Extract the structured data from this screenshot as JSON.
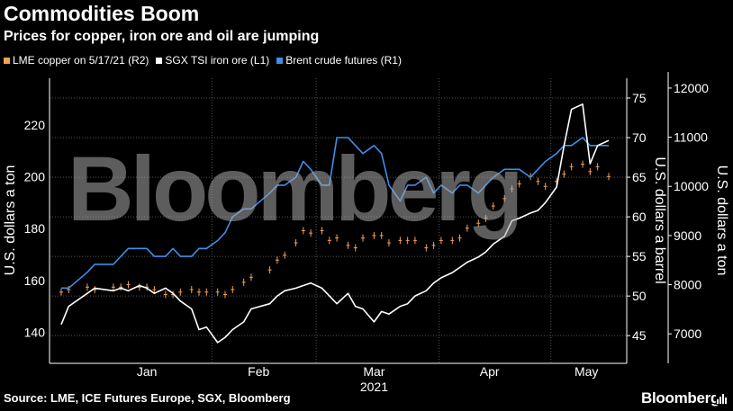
{
  "title": "Commodities Boom",
  "subtitle": "Prices for copper, iron ore and oil are jumping",
  "source": "Source: LME, ICE Futures Europe, SGX, Bloomberg",
  "brand": "Bloomberg",
  "watermark": "Bloomberg",
  "colors": {
    "copper": "#f5a050",
    "iron": "#ffffff",
    "brent": "#3d8fe8",
    "grid": "#555555",
    "background": "#000000"
  },
  "chart_data": {
    "type": "line",
    "x_ticks": [
      "Jan",
      "Feb",
      "Mar",
      "Apr",
      "May"
    ],
    "x_year": "2021",
    "legend": [
      {
        "label": "LME copper on 5/17/21 (R2)",
        "color": "#f5a050"
      },
      {
        "label": "SGX TSI iron ore (L1)",
        "color": "#ffffff"
      },
      {
        "label": "Brent crude futures (R1)",
        "color": "#3d8fe8"
      }
    ],
    "axes": {
      "left": {
        "label": "U.S. dollars a ton",
        "ticks": [
          140,
          160,
          180,
          200,
          220
        ],
        "range": [
          128,
          238
        ]
      },
      "right1": {
        "label": "U.S. dollars a barrel",
        "ticks": [
          45,
          50,
          55,
          60,
          65,
          70,
          75
        ],
        "range": [
          41.5,
          77.5
        ]
      },
      "right2": {
        "label": "U.S. dollars a ton",
        "ticks": [
          7000,
          8000,
          9000,
          10000,
          11000,
          12000
        ],
        "range": [
          6400,
          12200
        ]
      }
    },
    "x_range": [
      "2020-12-21",
      "2021-05-17"
    ],
    "series": [
      {
        "name": "SGX TSI iron ore (L1)",
        "axis": "left",
        "x": [
          "2020-12-21",
          "2020-12-23",
          "2020-12-28",
          "2020-12-30",
          "2021-01-04",
          "2021-01-06",
          "2021-01-08",
          "2021-01-11",
          "2021-01-13",
          "2021-01-15",
          "2021-01-18",
          "2021-01-20",
          "2021-01-22",
          "2021-01-25",
          "2021-01-27",
          "2021-01-29",
          "2021-02-01",
          "2021-02-03",
          "2021-02-05",
          "2021-02-08",
          "2021-02-10",
          "2021-02-15",
          "2021-02-17",
          "2021-02-19",
          "2021-02-22",
          "2021-02-24",
          "2021-02-26",
          "2021-03-01",
          "2021-03-03",
          "2021-03-05",
          "2021-03-08",
          "2021-03-10",
          "2021-03-12",
          "2021-03-15",
          "2021-03-17",
          "2021-03-19",
          "2021-03-22",
          "2021-03-24",
          "2021-03-26",
          "2021-03-29",
          "2021-03-31",
          "2021-04-02",
          "2021-04-05",
          "2021-04-07",
          "2021-04-09",
          "2021-04-12",
          "2021-04-14",
          "2021-04-16",
          "2021-04-19",
          "2021-04-21",
          "2021-04-23",
          "2021-04-26",
          "2021-04-28",
          "2021-04-30",
          "2021-05-03",
          "2021-05-05",
          "2021-05-07",
          "2021-05-10",
          "2021-05-12",
          "2021-05-14",
          "2021-05-17"
        ],
        "values": [
          143,
          150,
          155,
          157,
          156,
          157,
          156,
          158,
          157,
          155,
          157,
          155,
          152,
          149,
          141,
          142,
          136,
          138,
          141,
          144,
          149,
          151,
          154,
          156,
          157,
          158,
          159,
          157,
          154,
          151,
          155,
          150,
          149,
          144,
          148,
          147,
          150,
          151,
          154,
          156,
          159,
          161,
          163,
          165,
          167,
          169,
          171,
          174,
          177,
          183,
          184,
          186,
          187,
          190,
          196,
          212,
          226,
          228,
          205,
          212,
          214
        ]
      },
      {
        "name": "Brent crude futures (R1)",
        "axis": "right1",
        "x": [
          "2020-12-21",
          "2020-12-23",
          "2020-12-28",
          "2020-12-30",
          "2021-01-04",
          "2021-01-06",
          "2021-01-08",
          "2021-01-11",
          "2021-01-13",
          "2021-01-15",
          "2021-01-18",
          "2021-01-20",
          "2021-01-22",
          "2021-01-25",
          "2021-01-27",
          "2021-01-29",
          "2021-02-01",
          "2021-02-03",
          "2021-02-05",
          "2021-02-08",
          "2021-02-10",
          "2021-02-15",
          "2021-02-17",
          "2021-02-19",
          "2021-02-22",
          "2021-02-24",
          "2021-02-26",
          "2021-03-01",
          "2021-03-03",
          "2021-03-05",
          "2021-03-08",
          "2021-03-10",
          "2021-03-12",
          "2021-03-15",
          "2021-03-17",
          "2021-03-19",
          "2021-03-22",
          "2021-03-24",
          "2021-03-26",
          "2021-03-29",
          "2021-03-31",
          "2021-04-02",
          "2021-04-05",
          "2021-04-07",
          "2021-04-09",
          "2021-04-12",
          "2021-04-14",
          "2021-04-16",
          "2021-04-19",
          "2021-04-21",
          "2021-04-23",
          "2021-04-26",
          "2021-04-28",
          "2021-04-30",
          "2021-05-03",
          "2021-05-05",
          "2021-05-07",
          "2021-05-10",
          "2021-05-12",
          "2021-05-14",
          "2021-05-17"
        ],
        "values": [
          51,
          51,
          53,
          54,
          54,
          55,
          56,
          56,
          56,
          55,
          55,
          56,
          55,
          55,
          56,
          56,
          57,
          58,
          60,
          61,
          61,
          63,
          64,
          64,
          65,
          67,
          66,
          64,
          64,
          70,
          70,
          69,
          68,
          69,
          68,
          64,
          62,
          64,
          64,
          65,
          63,
          64,
          63,
          64,
          64,
          63,
          64,
          65,
          66,
          66,
          66,
          65,
          66,
          67,
          68,
          69,
          69,
          70,
          69,
          69,
          69
        ]
      },
      {
        "name": "LME copper on 5/17/21 (R2)",
        "axis": "right2",
        "x": [
          "2020-12-21",
          "2020-12-23",
          "2020-12-28",
          "2020-12-30",
          "2021-01-04",
          "2021-01-06",
          "2021-01-08",
          "2021-01-11",
          "2021-01-13",
          "2021-01-15",
          "2021-01-18",
          "2021-01-20",
          "2021-01-22",
          "2021-01-25",
          "2021-01-27",
          "2021-01-29",
          "2021-02-01",
          "2021-02-03",
          "2021-02-05",
          "2021-02-08",
          "2021-02-10",
          "2021-02-15",
          "2021-02-17",
          "2021-02-19",
          "2021-02-22",
          "2021-02-24",
          "2021-02-26",
          "2021-03-01",
          "2021-03-03",
          "2021-03-05",
          "2021-03-08",
          "2021-03-10",
          "2021-03-12",
          "2021-03-15",
          "2021-03-17",
          "2021-03-19",
          "2021-03-22",
          "2021-03-24",
          "2021-03-26",
          "2021-03-29",
          "2021-03-31",
          "2021-04-02",
          "2021-04-05",
          "2021-04-07",
          "2021-04-09",
          "2021-04-12",
          "2021-04-14",
          "2021-04-16",
          "2021-04-19",
          "2021-04-21",
          "2021-04-23",
          "2021-04-26",
          "2021-04-28",
          "2021-04-30",
          "2021-05-03",
          "2021-05-05",
          "2021-05-07",
          "2021-05-10",
          "2021-05-12",
          "2021-05-14",
          "2021-05-17"
        ],
        "values": [
          7850,
          7900,
          7950,
          7900,
          7950,
          7950,
          8000,
          7950,
          7950,
          7900,
          7800,
          7800,
          7850,
          7900,
          7850,
          7850,
          7850,
          7800,
          7900,
          8050,
          8150,
          8300,
          8500,
          8600,
          8850,
          9100,
          9050,
          9100,
          8900,
          8950,
          8800,
          8750,
          8950,
          9000,
          9000,
          8850,
          8900,
          8900,
          8900,
          8750,
          8800,
          8900,
          8900,
          8950,
          9150,
          9250,
          9350,
          9600,
          9750,
          9950,
          10050,
          10200,
          10100,
          10000,
          10100,
          10250,
          10400,
          10450,
          10300,
          10400,
          10200
        ]
      }
    ]
  }
}
